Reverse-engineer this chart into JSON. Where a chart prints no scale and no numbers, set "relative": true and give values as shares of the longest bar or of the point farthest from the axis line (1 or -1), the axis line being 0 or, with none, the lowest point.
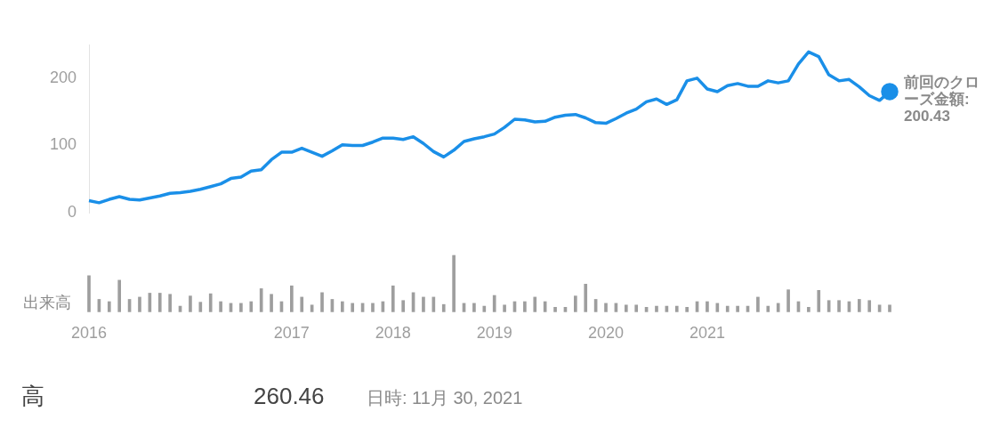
{
  "chart_data": [
    {
      "type": "line",
      "categories": [
        "2016",
        null,
        null,
        null,
        null,
        null,
        null,
        null,
        null,
        null,
        null,
        null,
        null,
        null,
        null,
        null,
        null,
        null,
        null,
        null,
        "2017",
        null,
        null,
        null,
        null,
        null,
        null,
        null,
        null,
        null,
        "2018",
        null,
        null,
        null,
        null,
        null,
        null,
        null,
        null,
        null,
        "2019",
        null,
        null,
        null,
        null,
        null,
        null,
        null,
        null,
        null,
        null,
        "2020",
        null,
        null,
        null,
        null,
        null,
        null,
        null,
        null,
        null,
        "2021",
        null,
        null,
        null,
        null,
        null,
        null,
        null,
        null,
        null,
        null,
        null,
        null,
        null,
        null,
        null,
        null,
        null,
        null
      ],
      "values": [
        18,
        15,
        20,
        24,
        20,
        19,
        22,
        25,
        29,
        30,
        32,
        35,
        39,
        43,
        51,
        53,
        62,
        64,
        79,
        90,
        90,
        96,
        90,
        84,
        92,
        101,
        100,
        100,
        105,
        111,
        111,
        109,
        113,
        103,
        91,
        83,
        93,
        106,
        110,
        113,
        117,
        127,
        139,
        138,
        135,
        136,
        142,
        145,
        146,
        141,
        134,
        133,
        140,
        148,
        154,
        165,
        169,
        161,
        168,
        196,
        200,
        184,
        180,
        189,
        192,
        188,
        188,
        196,
        193,
        196,
        221,
        239,
        232,
        205,
        196,
        198,
        187,
        174,
        167,
        180
      ],
      "color": "#1a8fe8",
      "ylim": [
        0,
        250
      ],
      "yticks": [
        0,
        100,
        200
      ],
      "grid": false,
      "tick_labels": "y",
      "annotations": [
        "前回のクローズ金額: 200.43"
      ]
    },
    {
      "type": "bar",
      "relative": true,
      "ylabel": "出来高",
      "color": "#9e9e9e",
      "tick_labels": "x",
      "categories": [
        "2016",
        null,
        null,
        null,
        null,
        null,
        null,
        null,
        null,
        null,
        null,
        null,
        null,
        null,
        null,
        null,
        null,
        null,
        null,
        null,
        "2017",
        null,
        null,
        null,
        null,
        null,
        null,
        null,
        null,
        null,
        "2018",
        null,
        null,
        null,
        null,
        null,
        null,
        null,
        null,
        null,
        "2019",
        null,
        null,
        null,
        null,
        null,
        null,
        null,
        null,
        null,
        null,
        "2020",
        null,
        null,
        null,
        null,
        null,
        null,
        null,
        null,
        null,
        "2021",
        null,
        null,
        null,
        null,
        null,
        null,
        null,
        null,
        null,
        null,
        null,
        null,
        null,
        null,
        null,
        null,
        null,
        null
      ],
      "values": [
        0.64,
        0.22,
        0.18,
        0.56,
        0.22,
        0.26,
        0.33,
        0.33,
        0.31,
        0.1,
        0.28,
        0.17,
        0.32,
        0.18,
        0.15,
        0.15,
        0.18,
        0.41,
        0.31,
        0.18,
        0.46,
        0.26,
        0.12,
        0.34,
        0.22,
        0.18,
        0.15,
        0.15,
        0.15,
        0.18,
        0.46,
        0.2,
        0.34,
        0.26,
        0.26,
        0.13,
        1,
        0.15,
        0.15,
        0.1,
        0.29,
        0.12,
        0.18,
        0.18,
        0.26,
        0.18,
        0.08,
        0.08,
        0.28,
        0.49,
        0.22,
        0.15,
        0.15,
        0.12,
        0.12,
        0.08,
        0.1,
        0.1,
        0.1,
        0.08,
        0.18,
        0.18,
        0.15,
        0.1,
        0.1,
        0.1,
        0.26,
        0.1,
        0.15,
        0.39,
        0.18,
        0.08,
        0.38,
        0.2,
        0.2,
        0.18,
        0.22,
        0.2,
        0.12,
        0.12
      ],
      "grid": false,
      "annotations": [
        "高",
        "260.46",
        "日時: 11月 30, 2021"
      ]
    }
  ]
}
